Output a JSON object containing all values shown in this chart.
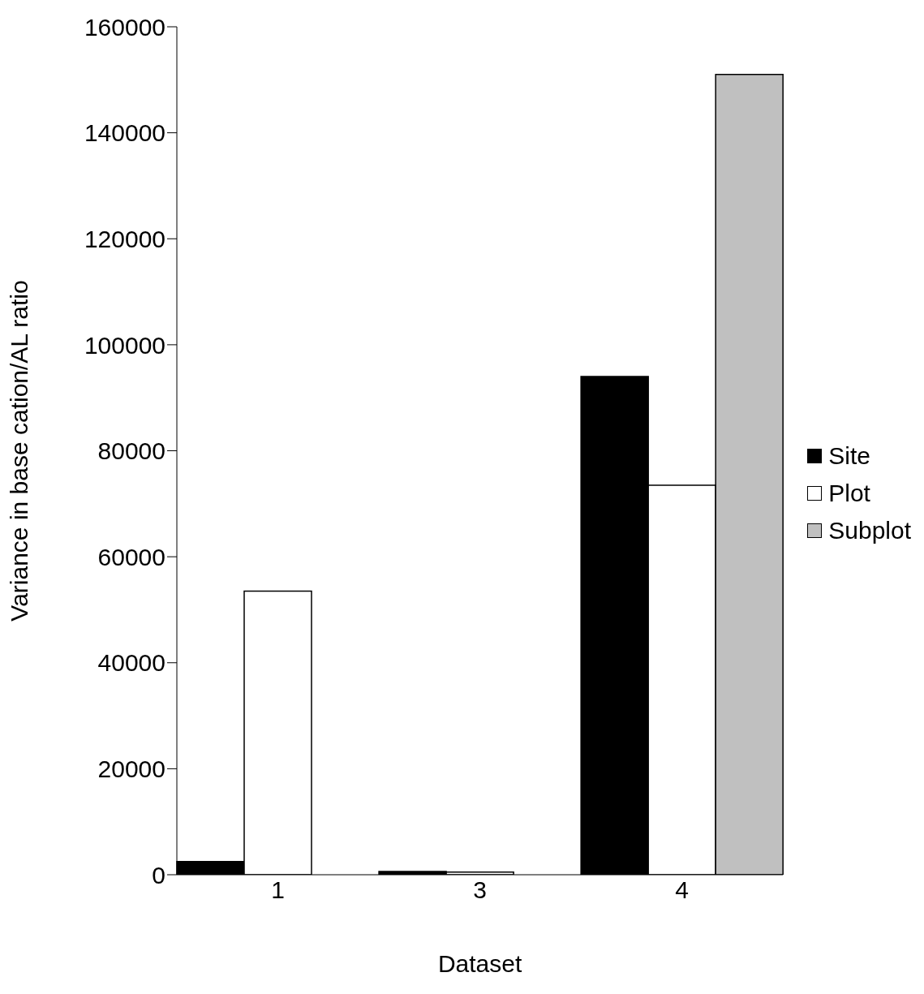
{
  "chart_data": {
    "type": "bar",
    "xlabel": "Dataset",
    "ylabel": "Variance  in base cation/AL ratio",
    "categories": [
      "1",
      "3",
      "4"
    ],
    "series": [
      {
        "name": "Site",
        "color": "#000000",
        "values": [
          2500,
          600,
          94000
        ]
      },
      {
        "name": "Plot",
        "color": "#ffffff",
        "values": [
          53500,
          500,
          73500
        ]
      },
      {
        "name": "Subplot",
        "color": "#c0c0c0",
        "values": [
          null,
          null,
          151000
        ]
      }
    ],
    "ylim": [
      0,
      160000
    ],
    "yticks": [
      0,
      20000,
      40000,
      60000,
      80000,
      100000,
      120000,
      140000,
      160000
    ],
    "grid": false,
    "legend": "right"
  }
}
